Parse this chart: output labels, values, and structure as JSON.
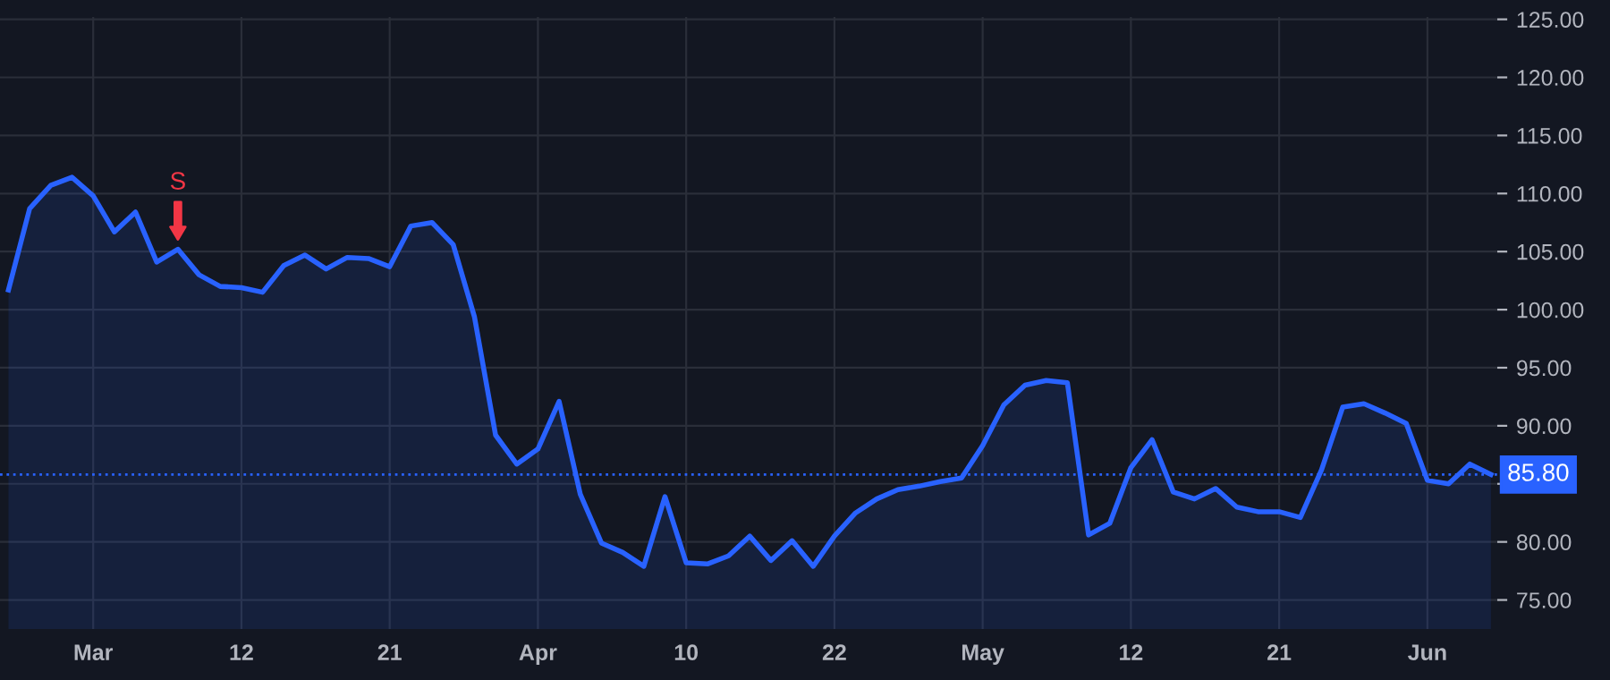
{
  "chart_data": {
    "type": "area",
    "categories": [
      null,
      null,
      null,
      null,
      "Mar",
      null,
      null,
      null,
      null,
      null,
      null,
      "12",
      null,
      null,
      null,
      null,
      null,
      null,
      "21",
      null,
      null,
      null,
      null,
      null,
      null,
      "Apr",
      null,
      null,
      null,
      null,
      null,
      null,
      "10",
      null,
      null,
      null,
      null,
      null,
      null,
      "22",
      null,
      null,
      null,
      null,
      null,
      null,
      "May",
      null,
      null,
      null,
      null,
      null,
      null,
      "12",
      null,
      null,
      null,
      null,
      null,
      null,
      "21",
      null,
      null,
      null,
      null,
      null,
      null,
      "Jun",
      null,
      null,
      null
    ],
    "series": [
      {
        "color": "#2962ff",
        "values": [
          101.7,
          108.7,
          110.7,
          111.4,
          109.8,
          106.7,
          108.4,
          104.1,
          105.2,
          103.0,
          102.0,
          101.9,
          101.5,
          103.8,
          104.7,
          103.5,
          104.5,
          104.4,
          103.7,
          107.2,
          107.5,
          105.6,
          99.4,
          89.2,
          86.7,
          88.0,
          92.1,
          84.1,
          79.9,
          79.1,
          77.9,
          83.9,
          78.2,
          78.1,
          78.8,
          80.5,
          78.4,
          80.1,
          77.9,
          80.5,
          82.5,
          83.7,
          84.5,
          84.8,
          85.2,
          85.5,
          88.3,
          91.8,
          93.5,
          93.9,
          93.7,
          80.6,
          81.6,
          86.4,
          88.8,
          84.3,
          83.7,
          84.6,
          83.0,
          82.6,
          82.6,
          82.1,
          86.2,
          91.6,
          91.9,
          91.1,
          90.2,
          85.3,
          85.0,
          86.7,
          85.8
        ]
      }
    ],
    "ylim": [
      72.5,
      125.2
    ],
    "yticks": [
      {
        "value": 75,
        "label": "75.00"
      },
      {
        "value": 80,
        "label": "80.00"
      },
      {
        "value": 85,
        "label": null
      },
      {
        "value": 90,
        "label": "90.00"
      },
      {
        "value": 95,
        "label": "95.00"
      },
      {
        "value": 100,
        "label": "100.00"
      },
      {
        "value": 105,
        "label": "105.00"
      },
      {
        "value": 110,
        "label": "110.00"
      },
      {
        "value": 115,
        "label": "115.00"
      },
      {
        "value": 120,
        "label": "120.00"
      },
      {
        "value": 125,
        "label": "125.00"
      }
    ],
    "grid": true,
    "ref_lines": [
      {
        "axis": "y",
        "value": 85.8,
        "label": "85.80",
        "color": "#2962ff",
        "line_style": "dotted"
      }
    ],
    "annotations": [
      {
        "text": "S",
        "y": 105.2
      }
    ]
  }
}
